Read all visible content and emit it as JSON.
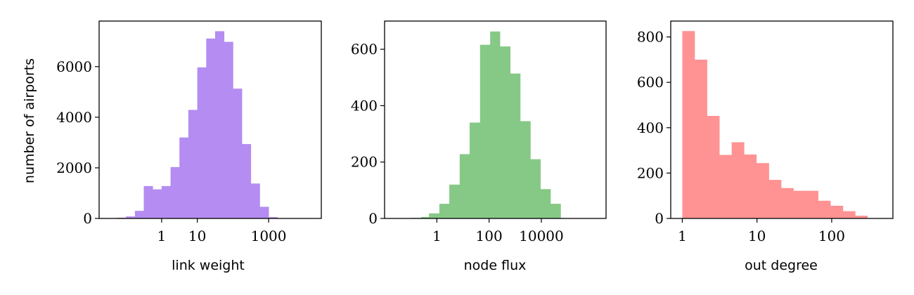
{
  "chart_data": [
    {
      "type": "bar",
      "xscale": "log",
      "xlabel": "link weight",
      "ylabel": "number of airports",
      "color": "#b48cf2",
      "xlim": [
        0.0177,
        30000
      ],
      "ylim": [
        0,
        7800
      ],
      "xticks": [
        1,
        10,
        1000
      ],
      "xtick_labels": [
        "1",
        "10",
        "1000"
      ],
      "yticks": [
        0,
        2000,
        4000,
        6000
      ],
      "ytick_labels": [
        "0",
        "2000",
        "4000",
        "6000"
      ],
      "bin_edges": [
        0.0562,
        0.1,
        0.178,
        0.316,
        0.562,
        1,
        1.78,
        3.16,
        5.62,
        10,
        17.8,
        31.6,
        56.2,
        100,
        178,
        316,
        562,
        1000,
        1780,
        3160,
        5620,
        10000
      ],
      "values": [
        30,
        80,
        300,
        1280,
        1150,
        1280,
        2030,
        3200,
        4290,
        5970,
        7110,
        7400,
        6980,
        5130,
        2940,
        1380,
        460,
        50,
        0,
        0,
        0
      ]
    },
    {
      "type": "bar",
      "xscale": "log",
      "xlabel": "node flux",
      "ylabel": "",
      "color": "#86c986",
      "xlim": [
        0.01,
        3000000
      ],
      "ylim": [
        0,
        700
      ],
      "xticks": [
        1,
        100,
        10000
      ],
      "xtick_labels": [
        "1",
        "100",
        "10000"
      ],
      "yticks": [
        0,
        200,
        400,
        600
      ],
      "ytick_labels": [
        "0",
        "200",
        "400",
        "600"
      ],
      "bin_edges": [
        0.1,
        0.25,
        0.5,
        1.25,
        3,
        7.5,
        18,
        45,
        110,
        260,
        640,
        1550,
        3800,
        9200,
        22400,
        54500,
        132000,
        322000,
        1000000
      ],
      "values": [
        2,
        5,
        18,
        52,
        120,
        228,
        340,
        616,
        663,
        610,
        514,
        345,
        210,
        104,
        52,
        0,
        0,
        0
      ]
    },
    {
      "type": "bar",
      "xscale": "log",
      "xlabel": "out degree",
      "ylabel": "",
      "color": "#ff9393",
      "xlim": [
        0.7,
        660
      ],
      "ylim": [
        0,
        870
      ],
      "xticks": [
        1,
        10,
        100
      ],
      "xtick_labels": [
        "1",
        "10",
        "100"
      ],
      "yticks": [
        0,
        200,
        400,
        600,
        800
      ],
      "ytick_labels": [
        "0",
        "200",
        "400",
        "600",
        "800"
      ],
      "bin_edges": [
        1,
        1.46,
        2.14,
        3.13,
        4.58,
        6.7,
        9.8,
        14.4,
        21,
        30.7,
        44.9,
        65.7,
        96.1,
        141,
        206,
        301
      ],
      "values": [
        826,
        700,
        452,
        280,
        336,
        282,
        244,
        170,
        134,
        122,
        122,
        78,
        56,
        32,
        12
      ]
    }
  ]
}
